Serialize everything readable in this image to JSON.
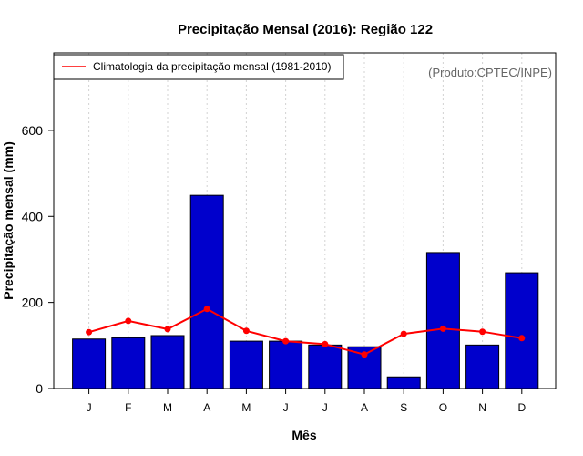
{
  "chart_data": {
    "type": "bar",
    "title": "Precipitação Mensal (2016): Região 122",
    "xlabel": "Mês",
    "ylabel": "Precipitação mensal (mm)",
    "ylim": [
      0,
      780
    ],
    "yticks": [
      0,
      200,
      400,
      600
    ],
    "categories": [
      "J",
      "F",
      "M",
      "A",
      "M",
      "J",
      "J",
      "A",
      "S",
      "O",
      "N",
      "D"
    ],
    "series": [
      {
        "name": "Precipitação mensal (2016)",
        "type": "bar",
        "color": "#0000CC",
        "values": [
          115,
          118,
          123,
          449,
          110,
          110,
          101,
          97,
          27,
          316,
          101,
          269
        ]
      },
      {
        "name": "Climatologia da precipitação mensal (1981-2010)",
        "type": "line",
        "color": "#FF0000",
        "values": [
          131,
          157,
          138,
          185,
          134,
          110,
          103,
          79,
          127,
          139,
          132,
          117
        ]
      }
    ],
    "legend": {
      "position": "top-left",
      "entries": [
        "Climatologia da precipitação mensal (1981-2010)"
      ]
    },
    "annotation": "(Produto:CPTEC/INPE)",
    "grid": {
      "vertical_dotted": true,
      "horizontal": false
    }
  }
}
